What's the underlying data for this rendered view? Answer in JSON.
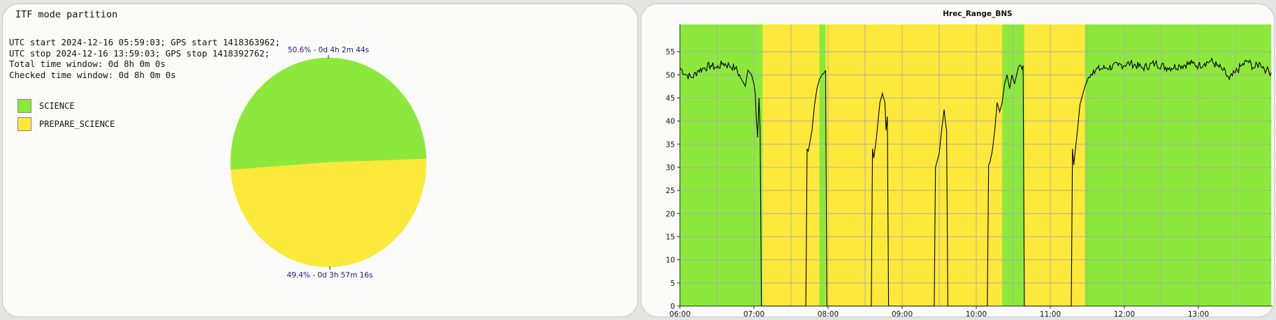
{
  "left_panel": {
    "title": "ITF mode partition",
    "info_lines": [
      "UTC start 2024-12-16 05:59:03; GPS start 1418363962;",
      "UTC stop 2024-12-16 13:59:03; GPS stop 1418392762;",
      "Total time window: 0d 8h 0m 0s",
      "Checked time window: 0d 8h 0m 0s"
    ],
    "legend": [
      {
        "label": "SCIENCE",
        "color": "#8de83e"
      },
      {
        "label": "PREPARE_SCIENCE",
        "color": "#fde83c"
      }
    ]
  },
  "colors": {
    "science": "#8de83e",
    "prepare_science": "#fde83c",
    "pie_label": "#1a1a78",
    "grid": "#a8a8a8",
    "line": "#000000"
  },
  "chart_data": [
    {
      "type": "pie",
      "slices": [
        {
          "name": "SCIENCE",
          "value": 50.6,
          "label": "50.6% - 0d 4h 2m 44s",
          "color": "#8de83e"
        },
        {
          "name": "PREPARE_SCIENCE",
          "value": 49.4,
          "label": "49.4% - 0d 3h 57m 16s",
          "color": "#fde83c"
        }
      ]
    },
    {
      "type": "line",
      "title": "Hrec_Range_BNS",
      "xlabel": "",
      "ylabel": "",
      "x_ticks": [
        "06:00",
        "07:00",
        "08:00",
        "09:00",
        "10:00",
        "11:00",
        "12:00",
        "13:00"
      ],
      "xlim": [
        "06:00",
        "13:59"
      ],
      "ylim": [
        0,
        60
      ],
      "y_ticks": [
        0,
        5,
        10,
        15,
        20,
        25,
        30,
        35,
        40,
        45,
        50,
        55
      ],
      "grid": true,
      "mode_bands": [
        {
          "mode": "SCIENCE",
          "start": "06:00",
          "end": "07:07"
        },
        {
          "mode": "PREPARE_SCIENCE",
          "start": "07:07",
          "end": "07:53"
        },
        {
          "mode": "SCIENCE",
          "start": "07:53",
          "end": "07:58"
        },
        {
          "mode": "PREPARE_SCIENCE",
          "start": "07:58",
          "end": "10:21"
        },
        {
          "mode": "SCIENCE",
          "start": "10:21",
          "end": "10:39"
        },
        {
          "mode": "PREPARE_SCIENCE",
          "start": "10:39",
          "end": "11:28"
        },
        {
          "mode": "SCIENCE",
          "start": "11:28",
          "end": "13:59"
        }
      ],
      "series": [
        {
          "points": [
            [
              "06:00",
              51.5
            ],
            [
              "06:05",
              50.0
            ],
            [
              "06:10",
              49.5
            ],
            [
              "06:15",
              51.0
            ],
            [
              "06:20",
              51.5
            ],
            [
              "06:25",
              52.0
            ],
            [
              "06:30",
              51.5
            ],
            [
              "06:35",
              52.5
            ],
            [
              "06:40",
              52.0
            ],
            [
              "06:45",
              51.5
            ],
            [
              "06:50",
              49.0
            ],
            [
              "06:53",
              47.5
            ],
            [
              "06:55",
              51.0
            ],
            [
              "06:58",
              50.0
            ],
            [
              "07:00",
              48.0
            ],
            [
              "07:01",
              46.0
            ],
            [
              "07:02",
              40.0
            ],
            [
              "07:03",
              36.5
            ],
            [
              "07:04",
              45.0
            ],
            [
              "07:05",
              38.0
            ],
            [
              "07:06",
              0.0
            ],
            [
              "07:42",
              0.0
            ],
            [
              "07:43",
              34.0
            ],
            [
              "07:44",
              33.5
            ],
            [
              "07:45",
              35.0
            ],
            [
              "07:47",
              38.0
            ],
            [
              "07:49",
              43.5
            ],
            [
              "07:51",
              47.0
            ],
            [
              "07:53",
              49.0
            ],
            [
              "07:55",
              50.0
            ],
            [
              "07:57",
              50.5
            ],
            [
              "07:58",
              51.0
            ],
            [
              "07:59",
              0.0
            ],
            [
              "08:35",
              0.0
            ],
            [
              "08:36",
              34.0
            ],
            [
              "08:37",
              32.0
            ],
            [
              "08:39",
              36.0
            ],
            [
              "08:42",
              44.0
            ],
            [
              "08:44",
              46.0
            ],
            [
              "08:46",
              44.0
            ],
            [
              "08:47",
              38.0
            ],
            [
              "08:48",
              41.0
            ],
            [
              "08:49",
              0.0
            ],
            [
              "09:26",
              0.0
            ],
            [
              "09:27",
              30.0
            ],
            [
              "09:28",
              31.0
            ],
            [
              "09:30",
              33.0
            ],
            [
              "09:32",
              38.0
            ],
            [
              "09:34",
              42.5
            ],
            [
              "09:35",
              40.0
            ],
            [
              "09:36",
              38.0
            ],
            [
              "09:37",
              0.0
            ],
            [
              "10:09",
              0.0
            ],
            [
              "10:10",
              30.5
            ],
            [
              "10:11",
              31.0
            ],
            [
              "10:13",
              33.5
            ],
            [
              "10:15",
              38.0
            ],
            [
              "10:17",
              44.0
            ],
            [
              "10:19",
              42.0
            ],
            [
              "10:21",
              44.0
            ],
            [
              "10:23",
              48.0
            ],
            [
              "10:25",
              50.0
            ],
            [
              "10:27",
              47.0
            ],
            [
              "10:29",
              50.0
            ],
            [
              "10:31",
              48.0
            ],
            [
              "10:34",
              51.5
            ],
            [
              "10:38",
              52.0
            ],
            [
              "10:39",
              0.0
            ],
            [
              "11:17",
              0.0
            ],
            [
              "11:18",
              34.0
            ],
            [
              "11:19",
              30.5
            ],
            [
              "11:20",
              33.0
            ],
            [
              "11:22",
              38.0
            ],
            [
              "11:24",
              43.5
            ],
            [
              "11:26",
              45.5
            ],
            [
              "11:28",
              47.5
            ],
            [
              "11:31",
              49.5
            ],
            [
              "11:35",
              51.0
            ],
            [
              "11:45",
              51.5
            ],
            [
              "11:55",
              52.0
            ],
            [
              "12:05",
              52.5
            ],
            [
              "12:15",
              51.5
            ],
            [
              "12:25",
              52.5
            ],
            [
              "12:35",
              51.5
            ],
            [
              "12:45",
              52.0
            ],
            [
              "12:55",
              52.5
            ],
            [
              "13:00",
              52.0
            ],
            [
              "13:05",
              52.5
            ],
            [
              "13:10",
              53.0
            ],
            [
              "13:15",
              52.0
            ],
            [
              "13:20",
              51.0
            ],
            [
              "13:25",
              49.0
            ],
            [
              "13:30",
              50.5
            ],
            [
              "13:35",
              52.0
            ],
            [
              "13:40",
              53.0
            ],
            [
              "13:45",
              51.5
            ],
            [
              "13:50",
              52.5
            ],
            [
              "13:55",
              51.0
            ],
            [
              "13:59",
              50.5
            ]
          ]
        }
      ]
    }
  ]
}
